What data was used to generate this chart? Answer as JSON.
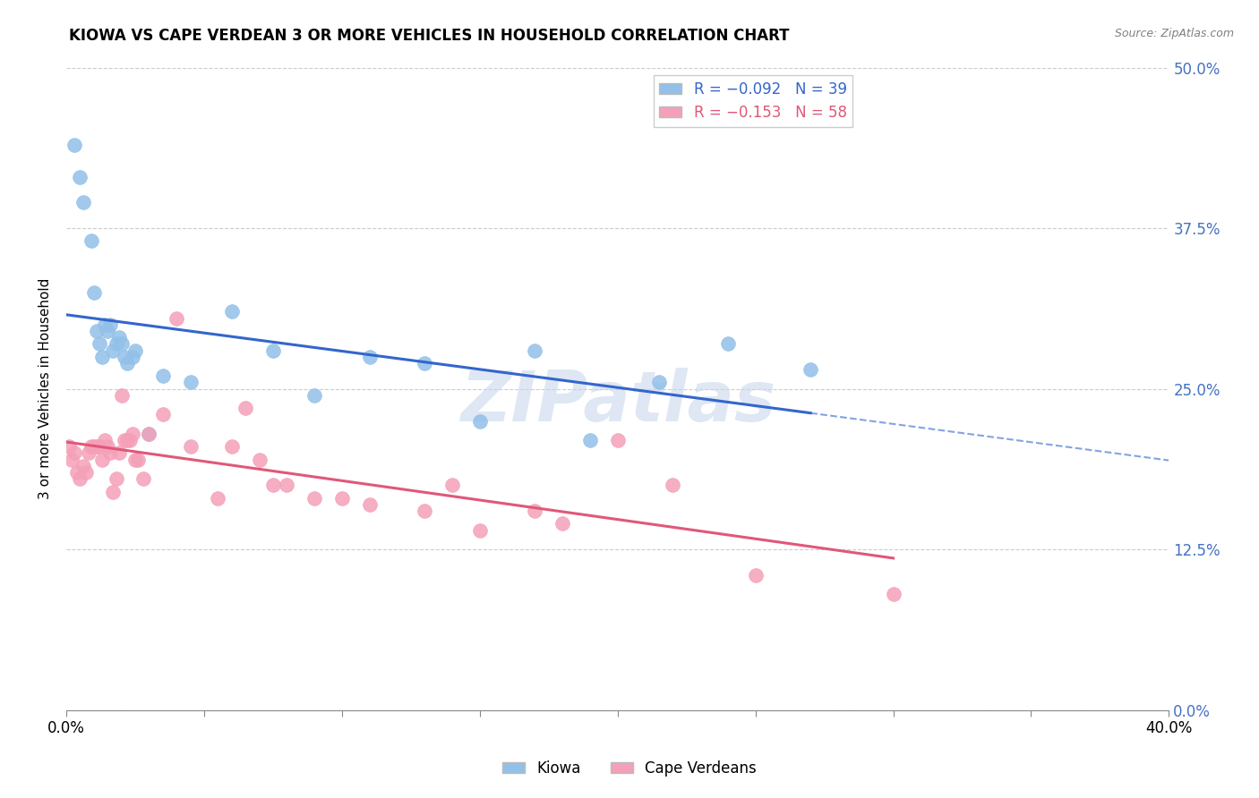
{
  "title": "KIOWA VS CAPE VERDEAN 3 OR MORE VEHICLES IN HOUSEHOLD CORRELATION CHART",
  "source": "Source: ZipAtlas.com",
  "ylabel": "3 or more Vehicles in Household",
  "ytick_values": [
    0.0,
    12.5,
    25.0,
    37.5,
    50.0
  ],
  "xlim": [
    0.0,
    40.0
  ],
  "ylim": [
    0.0,
    50.0
  ],
  "kiowa_color": "#92C0E8",
  "cape_color": "#F4A0B8",
  "kiowa_line_color": "#3366CC",
  "cape_line_color": "#E05878",
  "watermark": "ZIPatlas",
  "kiowa_x": [
    0.3,
    0.5,
    0.6,
    0.9,
    1.0,
    1.1,
    1.2,
    1.3,
    1.4,
    1.5,
    1.6,
    1.7,
    1.8,
    1.9,
    2.0,
    2.1,
    2.2,
    2.4,
    2.5,
    3.0,
    3.5,
    4.5,
    6.0,
    7.5,
    9.0,
    11.0,
    13.0,
    15.0,
    17.0,
    19.0,
    21.5,
    24.0,
    27.0
  ],
  "kiowa_y": [
    44.0,
    41.5,
    39.5,
    36.5,
    32.5,
    29.5,
    28.5,
    27.5,
    30.0,
    29.5,
    30.0,
    28.0,
    28.5,
    29.0,
    28.5,
    27.5,
    27.0,
    27.5,
    28.0,
    21.5,
    26.0,
    25.5,
    31.0,
    28.0,
    24.5,
    27.5,
    27.0,
    22.5,
    28.0,
    21.0,
    25.5,
    28.5,
    26.5
  ],
  "cape_x": [
    0.1,
    0.2,
    0.3,
    0.4,
    0.5,
    0.6,
    0.7,
    0.8,
    0.9,
    1.0,
    1.1,
    1.2,
    1.3,
    1.4,
    1.5,
    1.6,
    1.7,
    1.8,
    1.9,
    2.0,
    2.1,
    2.2,
    2.3,
    2.4,
    2.5,
    2.6,
    2.8,
    3.0,
    3.5,
    4.0,
    4.5,
    5.5,
    6.0,
    6.5,
    7.0,
    7.5,
    8.0,
    9.0,
    10.0,
    11.0,
    13.0,
    14.0,
    15.0,
    17.0,
    18.0,
    20.0,
    22.0,
    25.0,
    30.0
  ],
  "cape_y": [
    20.5,
    19.5,
    20.0,
    18.5,
    18.0,
    19.0,
    18.5,
    20.0,
    20.5,
    20.5,
    20.5,
    20.5,
    19.5,
    21.0,
    20.5,
    20.0,
    17.0,
    18.0,
    20.0,
    24.5,
    21.0,
    21.0,
    21.0,
    21.5,
    19.5,
    19.5,
    18.0,
    21.5,
    23.0,
    30.5,
    20.5,
    16.5,
    20.5,
    23.5,
    19.5,
    17.5,
    17.5,
    16.5,
    16.5,
    16.0,
    15.5,
    17.5,
    14.0,
    15.5,
    14.5,
    21.0,
    17.5,
    10.5,
    9.0
  ]
}
